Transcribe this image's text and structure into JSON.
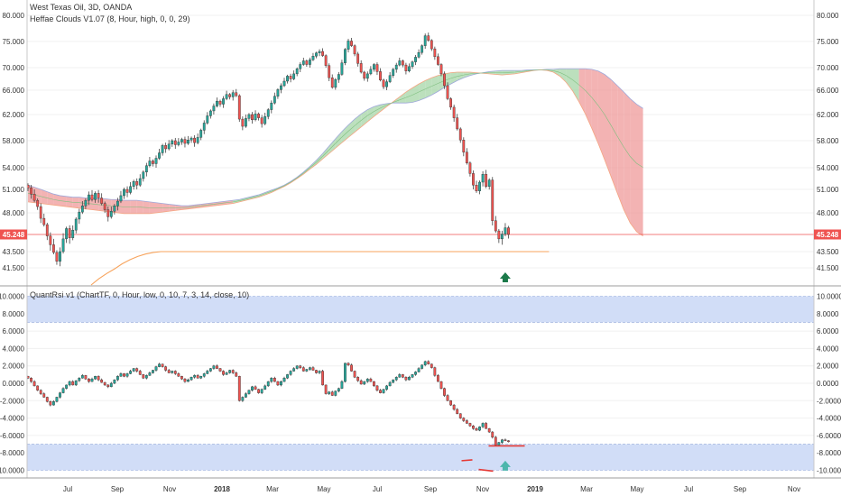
{
  "header": {
    "title": "West Texas Oil, 3D, OANDA",
    "indicator1": "Heffae Clouds V1.07 (8, Hour, high, 0, 0, 29)",
    "indicator2": "QuantRsi v1 (ChartTF, 0, Hour, low, 0, 10, 7, 3, 14, close, 10)"
  },
  "price_tag": "45.248",
  "colors": {
    "up": "#26a69a",
    "down": "#ef5350",
    "bull_cloud": "#a5d6a7",
    "bear_cloud": "#ef9a9a",
    "band": "#c5d5f5",
    "orange": "#f7a35c",
    "arrow": "#1b7a4a"
  },
  "chart_data": [
    {
      "type": "candlestick",
      "name": "price",
      "yticks": [
        "80.000",
        "75.000",
        "70.000",
        "66.000",
        "62.000",
        "58.000",
        "54.000",
        "51.000",
        "48.000",
        "45.248",
        "43.500",
        "41.500"
      ],
      "last_price": 45.248,
      "x_labels": [
        "Jul",
        "Sep",
        "Nov",
        "2018",
        "Mar",
        "May",
        "Jul",
        "Sep",
        "Nov",
        "2019",
        "Mar",
        "May",
        "Jul",
        "Sep",
        "Nov"
      ],
      "x_labels_bold": [
        "2018",
        "2019"
      ],
      "closes": [
        51.2,
        50.4,
        49.6,
        48.8,
        47.3,
        46.5,
        45.1,
        44.2,
        43.4,
        42.3,
        43.5,
        44.8,
        46.0,
        44.9,
        45.8,
        47.2,
        48.1,
        48.9,
        49.6,
        50.3,
        49.7,
        50.5,
        49.9,
        49.2,
        48.4,
        47.5,
        48.2,
        48.9,
        49.5,
        50.2,
        51.0,
        50.6,
        51.4,
        52.1,
        51.6,
        52.5,
        53.4,
        54.3,
        55.0,
        54.6,
        55.4,
        56.2,
        57.3,
        56.8,
        57.5,
        58.0,
        57.4,
        57.8,
        58.2,
        57.6,
        58.1,
        58.4,
        57.7,
        58.5,
        59.6,
        60.7,
        61.8,
        62.6,
        63.4,
        64.2,
        63.7,
        64.6,
        65.3,
        64.9,
        65.6,
        65.1,
        61.3,
        60.2,
        61.4,
        62.0,
        61.2,
        62.1,
        61.5,
        60.6,
        61.7,
        62.8,
        63.9,
        65.0,
        66.1,
        66.8,
        67.6,
        68.5,
        68.0,
        68.9,
        69.8,
        70.6,
        71.3,
        70.6,
        71.5,
        72.2,
        72.8,
        73.1,
        72.3,
        70.4,
        68.2,
        66.5,
        67.9,
        68.8,
        70.9,
        73.5,
        75.1,
        74.2,
        72.6,
        70.8,
        69.2,
        68.1,
        68.9,
        69.7,
        70.6,
        69.3,
        67.8,
        66.6,
        67.5,
        68.6,
        69.7,
        70.5,
        71.3,
        70.5,
        69.4,
        70.2,
        71.1,
        72.0,
        72.9,
        74.2,
        76.1,
        75.2,
        73.6,
        72.1,
        70.6,
        68.9,
        66.8,
        64.6,
        63.2,
        61.5,
        59.8,
        58.1,
        56.3,
        54.7,
        53.2,
        51.6,
        50.8,
        52.0,
        53.1,
        51.4,
        52.3,
        47.0,
        45.7,
        44.8,
        45.3,
        46.1,
        45.25
      ],
      "rsi_closes": [
        0.6,
        0.2,
        -0.3,
        -0.8,
        -1.2,
        -1.6,
        -2.1,
        -2.5,
        -2.1,
        -1.6,
        -1.1,
        -0.6,
        -0.2,
        0.2,
        -0.2,
        0.3,
        0.6,
        0.9,
        0.5,
        0.2,
        0.5,
        0.8,
        0.4,
        0.1,
        -0.2,
        -0.4,
        0.0,
        0.4,
        0.8,
        1.1,
        0.8,
        1.1,
        1.4,
        1.7,
        1.4,
        1.0,
        0.6,
        0.9,
        1.2,
        1.5,
        1.9,
        2.2,
        1.9,
        1.5,
        1.2,
        1.4,
        1.1,
        0.8,
        0.5,
        0.2,
        0.4,
        0.7,
        0.9,
        0.6,
        0.8,
        1.1,
        1.4,
        1.7,
        2.0,
        1.7,
        1.4,
        1.0,
        1.2,
        1.5,
        1.2,
        0.8,
        -2.0,
        -1.6,
        -1.2,
        -0.8,
        -0.4,
        -0.7,
        -1.1,
        -0.7,
        -0.3,
        0.2,
        0.6,
        0.2,
        -0.2,
        0.2,
        0.6,
        1.0,
        1.4,
        1.7,
        2.0,
        1.8,
        1.4,
        1.6,
        1.8,
        1.5,
        1.2,
        1.4,
        -0.2,
        -1.2,
        -1.0,
        -1.4,
        -0.9,
        -0.6,
        0.2,
        2.3,
        2.1,
        1.4,
        0.7,
        0.3,
        -0.1,
        0.2,
        0.5,
        0.2,
        -0.3,
        -0.8,
        -1.1,
        -0.7,
        -0.3,
        0.1,
        0.4,
        0.7,
        1.0,
        0.7,
        0.4,
        0.7,
        1.0,
        1.3,
        1.7,
        2.1,
        2.5,
        2.2,
        1.8,
        0.9,
        0.2,
        -0.6,
        -1.4,
        -2.0,
        -2.5,
        -3.0,
        -3.5,
        -4.0,
        -4.3,
        -4.6,
        -4.9,
        -5.2,
        -5.4,
        -5.0,
        -4.6,
        -5.2,
        -5.6,
        -6.2,
        -7.1,
        -6.8,
        -6.5,
        -6.6,
        -6.7
      ],
      "cloud_top": [
        51.6,
        51.3,
        51.0,
        50.7,
        50.4,
        50.2,
        50.1,
        50.0,
        50.0,
        49.9,
        49.9,
        49.8,
        49.8,
        49.7,
        49.7,
        49.6,
        49.6,
        49.6,
        49.5,
        49.4,
        49.3,
        49.2,
        49.1,
        49.0,
        48.9,
        48.9,
        49.0,
        49.1,
        49.2,
        49.3,
        49.4,
        49.5,
        49.6,
        49.7,
        49.9,
        50.1,
        50.3,
        50.6,
        50.9,
        51.2,
        51.6,
        52.1,
        52.7,
        53.4,
        54.2,
        55.1,
        56.1,
        57.2,
        58.3,
        59.4,
        60.4,
        61.3,
        62.1,
        62.8,
        63.3,
        63.6,
        63.8,
        63.9,
        63.9,
        63.9,
        64.0,
        64.3,
        64.7,
        65.2,
        65.8,
        66.5,
        67.1,
        67.7,
        68.2,
        68.6,
        68.9,
        69.1,
        69.3,
        69.4,
        69.5,
        69.5,
        69.5,
        69.5,
        69.6,
        69.6,
        69.6,
        69.7,
        69.7,
        69.8,
        69.8,
        69.8,
        69.8,
        69.8,
        69.7,
        69.4,
        68.8,
        67.9,
        66.8,
        65.7,
        64.6,
        63.7,
        63.0
      ],
      "cloud_bot": [
        49.4,
        49.3,
        49.2,
        49.1,
        49.0,
        48.9,
        48.8,
        48.7,
        48.6,
        48.5,
        48.4,
        48.3,
        48.2,
        48.1,
        48.0,
        47.9,
        47.9,
        47.9,
        47.9,
        47.9,
        48.0,
        48.1,
        48.2,
        48.3,
        48.4,
        48.5,
        48.6,
        48.7,
        48.8,
        48.9,
        49.0,
        49.1,
        49.2,
        49.4,
        49.6,
        49.8,
        50.0,
        50.3,
        50.6,
        51.0,
        51.4,
        51.9,
        52.5,
        53.1,
        53.8,
        54.5,
        55.3,
        56.1,
        56.9,
        57.7,
        58.5,
        59.3,
        60.1,
        60.9,
        61.7,
        62.5,
        63.3,
        64.1,
        64.9,
        65.7,
        66.4,
        67.1,
        67.7,
        68.2,
        68.6,
        68.9,
        69.1,
        69.2,
        69.2,
        69.2,
        69.1,
        69.0,
        68.9,
        68.8,
        68.7,
        68.8,
        68.9,
        69.1,
        69.3,
        69.5,
        69.6,
        69.5,
        69.2,
        68.5,
        67.4,
        65.9,
        64.1,
        62.1,
        59.9,
        57.6,
        55.2,
        52.8,
        50.5,
        48.4,
        46.7,
        45.6,
        45.1
      ],
      "cloud_bull": [
        0,
        0,
        0,
        0,
        0,
        0,
        0,
        0,
        0,
        0,
        0,
        0,
        0,
        0,
        0,
        0,
        0,
        0,
        0,
        0,
        0,
        0,
        0,
        0,
        0,
        0,
        0,
        0,
        0,
        0,
        0,
        0,
        1,
        1,
        1,
        1,
        1,
        1,
        1,
        1,
        1,
        1,
        1,
        1,
        1,
        1,
        1,
        1,
        1,
        1,
        1,
        1,
        1,
        1,
        1,
        1,
        1,
        1,
        1,
        1,
        1,
        1,
        1,
        1,
        1,
        1,
        1,
        1,
        1,
        1,
        1,
        1,
        1,
        1,
        1,
        1,
        1,
        1,
        1,
        1,
        1,
        1,
        1,
        1,
        1,
        1,
        0,
        0,
        0,
        0,
        0,
        0,
        0,
        0,
        0,
        0,
        0
      ],
      "orange_line": [
        38.5,
        39.6,
        40.5,
        41.3,
        42.0,
        42.5,
        42.9,
        43.2,
        43.4,
        43.5,
        43.5,
        43.5,
        43.5,
        43.5,
        43.5,
        43.5,
        43.5,
        43.5,
        43.5,
        43.5,
        43.5,
        43.5,
        43.5,
        43.5,
        43.5,
        43.5,
        43.5,
        43.5,
        43.5,
        43.5,
        43.5,
        43.5,
        43.5,
        43.5,
        43.5,
        43.5,
        43.5,
        43.5,
        43.5,
        43.5,
        43.5,
        43.5,
        43.5,
        43.5,
        43.5,
        43.5,
        43.5,
        43.5,
        43.5,
        43.5,
        43.5,
        43.5,
        43.5,
        43.5,
        43.5,
        43.5,
        43.5,
        43.5,
        43.5,
        43.5
      ]
    },
    {
      "type": "candlestick",
      "name": "rsi",
      "yticks": [
        "10.0000",
        "8.0000",
        "6.0000",
        "4.0000",
        "2.0000",
        "0.0000",
        "-2.0000",
        "-4.0000",
        "-6.0000",
        "-8.0000",
        "-10.0000"
      ],
      "bands": [
        [
          7.0,
          10.0
        ],
        [
          -10.0,
          -7.0
        ]
      ]
    }
  ]
}
